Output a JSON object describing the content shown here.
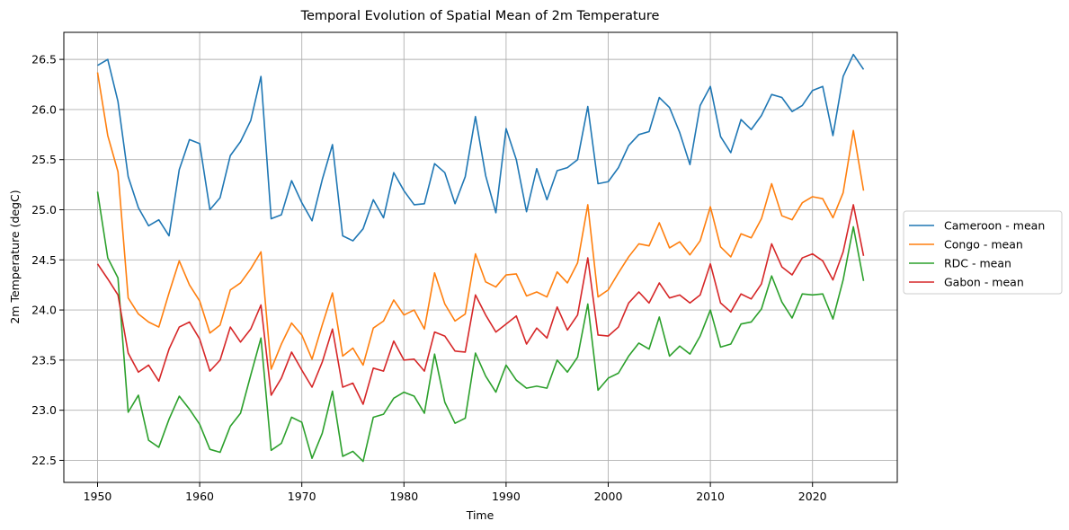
{
  "chart_data": {
    "type": "line",
    "title": "Temporal Evolution of Spatial Mean of 2m Temperature",
    "xlabel": "Time",
    "ylabel": "2m Temperature (degC)",
    "xlim": [
      1946.7,
      2028.3
    ],
    "ylim": [
      22.28,
      26.77
    ],
    "xticks": [
      1950,
      1960,
      1970,
      1980,
      1990,
      2000,
      2010,
      2020
    ],
    "yticks": [
      22.5,
      23.0,
      23.5,
      24.0,
      24.5,
      25.0,
      25.5,
      26.0,
      26.5
    ],
    "ytick_labels": [
      "22.5",
      "23.0",
      "23.5",
      "24.0",
      "24.5",
      "25.0",
      "25.5",
      "26.0",
      "26.5"
    ],
    "grid": true,
    "legend_position": "right-outside-center",
    "x_start": 1950,
    "series": [
      {
        "name": "Cameroon - mean",
        "color": "#1f77b4",
        "values": [
          26.44,
          26.5,
          26.08,
          25.33,
          25.02,
          24.84,
          24.9,
          24.74,
          25.4,
          25.7,
          25.66,
          25.0,
          25.12,
          25.54,
          25.68,
          25.89,
          26.33,
          24.91,
          24.95,
          25.29,
          25.07,
          24.89,
          25.3,
          25.65,
          24.74,
          24.69,
          24.81,
          25.1,
          24.92,
          25.37,
          25.19,
          25.05,
          25.06,
          25.46,
          25.37,
          25.06,
          25.33,
          25.93,
          25.34,
          24.97,
          25.81,
          25.5,
          24.98,
          25.41,
          25.1,
          25.39,
          25.42,
          25.5,
          26.03,
          25.26,
          25.28,
          25.42,
          25.64,
          25.75,
          25.78,
          26.12,
          26.02,
          25.77,
          25.45,
          26.04,
          26.23,
          25.73,
          25.57,
          25.9,
          25.8,
          25.94,
          26.15,
          26.12,
          25.98,
          26.04,
          26.19,
          26.23,
          25.74,
          26.33,
          26.55,
          26.4
        ]
      },
      {
        "name": "Congo - mean",
        "color": "#ff7f0e",
        "values": [
          26.37,
          25.74,
          25.38,
          24.12,
          23.96,
          23.88,
          23.83,
          24.17,
          24.49,
          24.25,
          24.09,
          23.77,
          23.85,
          24.2,
          24.27,
          24.41,
          24.58,
          23.41,
          23.66,
          23.87,
          23.75,
          23.51,
          23.85,
          24.17,
          23.54,
          23.62,
          23.45,
          23.82,
          23.89,
          24.1,
          23.95,
          24.0,
          23.81,
          24.37,
          24.06,
          23.89,
          23.96,
          24.56,
          24.28,
          24.23,
          24.35,
          24.36,
          24.14,
          24.18,
          24.13,
          24.38,
          24.27,
          24.47,
          25.05,
          24.13,
          24.2,
          24.37,
          24.53,
          24.66,
          24.64,
          24.87,
          24.62,
          24.68,
          24.55,
          24.69,
          25.03,
          24.63,
          24.53,
          24.76,
          24.72,
          24.91,
          25.26,
          24.94,
          24.9,
          25.07,
          25.13,
          25.11,
          24.92,
          25.17,
          25.79,
          25.19
        ]
      },
      {
        "name": "RDC - mean",
        "color": "#2ca02c",
        "values": [
          25.18,
          24.52,
          24.32,
          22.98,
          23.15,
          22.7,
          22.63,
          22.91,
          23.14,
          23.01,
          22.86,
          22.61,
          22.58,
          22.84,
          22.97,
          23.35,
          23.72,
          22.6,
          22.67,
          22.93,
          22.88,
          22.52,
          22.77,
          23.19,
          22.54,
          22.59,
          22.49,
          22.93,
          22.96,
          23.12,
          23.18,
          23.14,
          22.97,
          23.56,
          23.08,
          22.87,
          22.92,
          23.57,
          23.34,
          23.18,
          23.45,
          23.3,
          23.22,
          23.24,
          23.22,
          23.5,
          23.38,
          23.53,
          24.06,
          23.2,
          23.32,
          23.37,
          23.54,
          23.67,
          23.61,
          23.93,
          23.54,
          23.64,
          23.56,
          23.74,
          24.0,
          23.63,
          23.66,
          23.86,
          23.88,
          24.01,
          24.34,
          24.08,
          23.92,
          24.16,
          24.15,
          24.16,
          23.91,
          24.3,
          24.83,
          24.29
        ]
      },
      {
        "name": "Gabon - mean",
        "color": "#d62728",
        "values": [
          24.46,
          24.31,
          24.15,
          23.57,
          23.38,
          23.45,
          23.29,
          23.61,
          23.83,
          23.88,
          23.71,
          23.39,
          23.5,
          23.83,
          23.68,
          23.81,
          24.05,
          23.15,
          23.32,
          23.58,
          23.4,
          23.23,
          23.48,
          23.81,
          23.23,
          23.27,
          23.06,
          23.42,
          23.39,
          23.69,
          23.5,
          23.51,
          23.39,
          23.78,
          23.74,
          23.59,
          23.58,
          24.15,
          23.95,
          23.78,
          23.86,
          23.94,
          23.66,
          23.82,
          23.72,
          24.03,
          23.8,
          23.95,
          24.52,
          23.75,
          23.74,
          23.83,
          24.07,
          24.18,
          24.07,
          24.27,
          24.12,
          24.15,
          24.07,
          24.15,
          24.46,
          24.07,
          23.98,
          24.16,
          24.11,
          24.26,
          24.66,
          24.43,
          24.35,
          24.52,
          24.56,
          24.49,
          24.3,
          24.58,
          25.05,
          24.54
        ]
      }
    ]
  }
}
